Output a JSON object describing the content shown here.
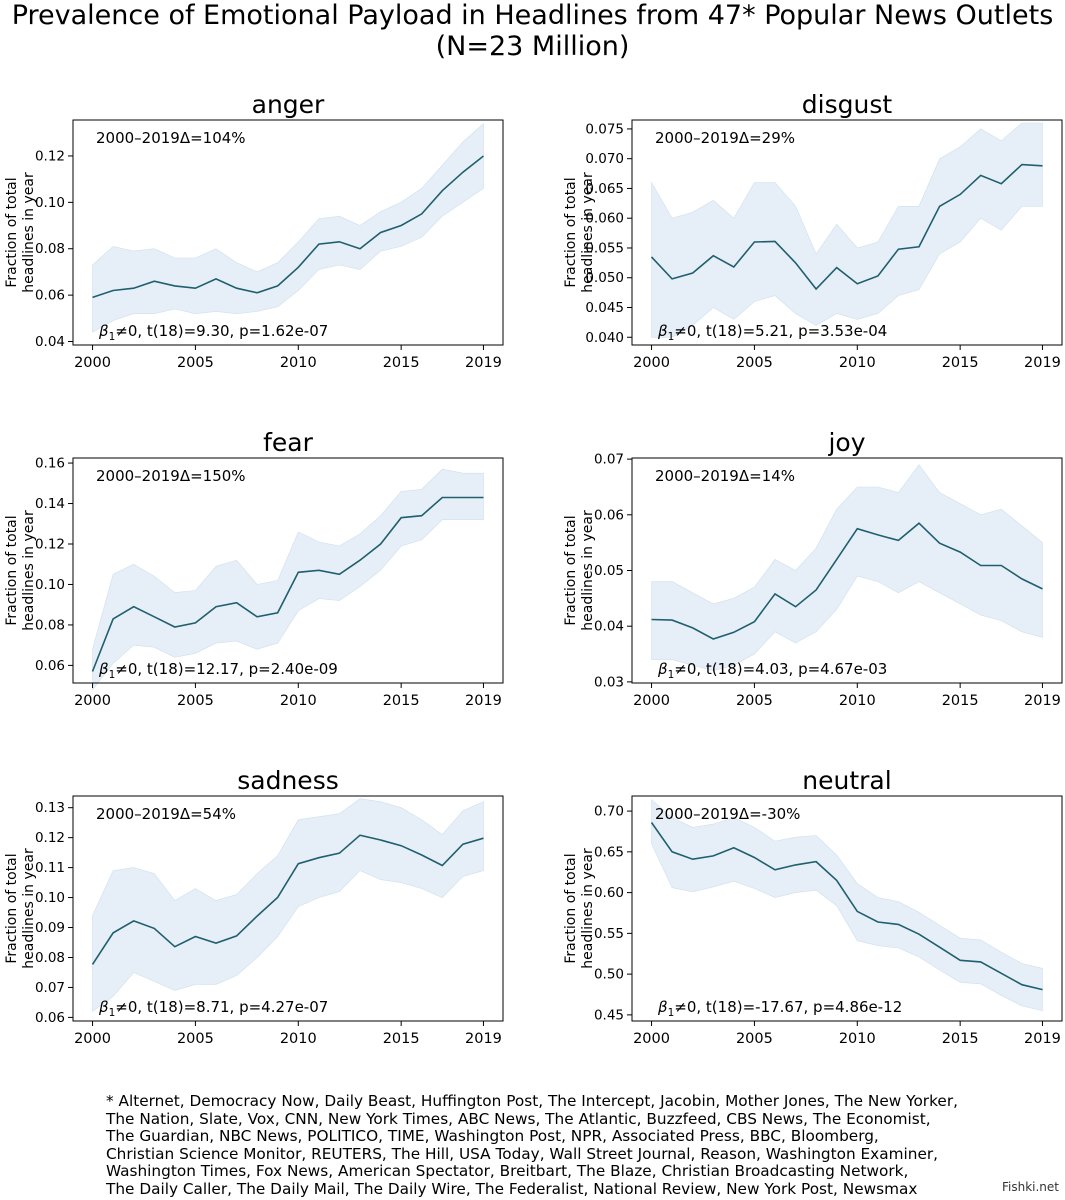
{
  "title": {
    "line1": "Prevalence of Emotional Payload in Headlines from 47* Popular News Outlets",
    "line2": "(N=23 Million)"
  },
  "shared": {
    "ylabel_line1": "Fraction of total",
    "ylabel_line2": "headlines in year",
    "x_ticks": [
      "2000",
      "2005",
      "2010",
      "2015",
      "2019"
    ],
    "x_tick_values": [
      2000,
      2005,
      2010,
      2015,
      2019
    ],
    "colors": {
      "line": "#1f5f6e",
      "band": "#e6eff7",
      "band_edge": "#cfdfee"
    }
  },
  "chart_data": [
    {
      "type": "line",
      "title": "anger",
      "delta": "2000–2019Δ=104%",
      "stat": "≠0, t(18)=9.30, p=1.62e-07",
      "x": [
        2000,
        2001,
        2002,
        2003,
        2004,
        2005,
        2006,
        2007,
        2008,
        2009,
        2010,
        2011,
        2012,
        2013,
        2014,
        2015,
        2016,
        2017,
        2018,
        2019
      ],
      "values": [
        0.059,
        0.062,
        0.063,
        0.066,
        0.064,
        0.063,
        0.067,
        0.063,
        0.061,
        0.064,
        0.072,
        0.082,
        0.083,
        0.08,
        0.087,
        0.09,
        0.095,
        0.105,
        0.113,
        0.12
      ],
      "lower": [
        0.044,
        0.049,
        0.052,
        0.052,
        0.054,
        0.052,
        0.053,
        0.052,
        0.053,
        0.055,
        0.062,
        0.071,
        0.073,
        0.071,
        0.079,
        0.081,
        0.085,
        0.094,
        0.1,
        0.106
      ],
      "upper": [
        0.073,
        0.081,
        0.079,
        0.08,
        0.076,
        0.076,
        0.08,
        0.074,
        0.07,
        0.074,
        0.083,
        0.093,
        0.094,
        0.09,
        0.096,
        0.1,
        0.106,
        0.116,
        0.126,
        0.134
      ],
      "ylim": [
        0.0385,
        0.1355
      ],
      "y_ticks": [
        0.04,
        0.06,
        0.08,
        0.1,
        0.12
      ],
      "y_tick_labels": [
        "0.04",
        "0.06",
        "0.08",
        "0.10",
        "0.12"
      ]
    },
    {
      "type": "line",
      "title": "disgust",
      "delta": "2000–2019Δ=29%",
      "stat": "≠0, t(18)=5.21, p=3.53e-04",
      "x": [
        2000,
        2001,
        2002,
        2003,
        2004,
        2005,
        2006,
        2007,
        2008,
        2009,
        2010,
        2011,
        2012,
        2013,
        2014,
        2015,
        2016,
        2017,
        2018,
        2019
      ],
      "values": [
        0.0535,
        0.0498,
        0.0508,
        0.0537,
        0.0518,
        0.056,
        0.0561,
        0.0525,
        0.0481,
        0.0517,
        0.049,
        0.0503,
        0.0548,
        0.0552,
        0.062,
        0.064,
        0.0672,
        0.0658,
        0.069,
        0.0688
      ],
      "lower": [
        0.04,
        0.04,
        0.042,
        0.045,
        0.043,
        0.046,
        0.047,
        0.044,
        0.042,
        0.044,
        0.043,
        0.044,
        0.047,
        0.048,
        0.054,
        0.056,
        0.06,
        0.058,
        0.062,
        0.062
      ],
      "upper": [
        0.066,
        0.06,
        0.061,
        0.063,
        0.06,
        0.066,
        0.066,
        0.062,
        0.054,
        0.059,
        0.055,
        0.056,
        0.062,
        0.062,
        0.07,
        0.072,
        0.075,
        0.073,
        0.076,
        0.076
      ],
      "ylim": [
        0.0387,
        0.0765
      ],
      "y_ticks": [
        0.04,
        0.045,
        0.05,
        0.055,
        0.06,
        0.065,
        0.07,
        0.075
      ],
      "y_tick_labels": [
        "0.040",
        "0.045",
        "0.050",
        "0.055",
        "0.060",
        "0.065",
        "0.070",
        "0.075"
      ]
    },
    {
      "type": "line",
      "title": "fear",
      "delta": "2000–2019Δ=150%",
      "stat": "≠0, t(18)=12.17, p=2.40e-09",
      "x": [
        2000,
        2001,
        2002,
        2003,
        2004,
        2005,
        2006,
        2007,
        2008,
        2009,
        2010,
        2011,
        2012,
        2013,
        2014,
        2015,
        2016,
        2017,
        2018,
        2019
      ],
      "values": [
        0.057,
        0.083,
        0.089,
        0.084,
        0.079,
        0.081,
        0.089,
        0.091,
        0.084,
        0.086,
        0.106,
        0.107,
        0.105,
        0.112,
        0.12,
        0.133,
        0.134,
        0.143,
        0.143,
        0.143
      ],
      "lower": [
        0.048,
        0.061,
        0.07,
        0.069,
        0.064,
        0.066,
        0.071,
        0.072,
        0.068,
        0.071,
        0.087,
        0.093,
        0.092,
        0.099,
        0.107,
        0.119,
        0.122,
        0.132,
        0.132,
        0.132
      ],
      "upper": [
        0.068,
        0.105,
        0.11,
        0.104,
        0.096,
        0.097,
        0.109,
        0.112,
        0.1,
        0.102,
        0.126,
        0.121,
        0.119,
        0.125,
        0.134,
        0.146,
        0.147,
        0.157,
        0.155,
        0.155
      ],
      "ylim": [
        0.0513,
        0.1625
      ],
      "y_ticks": [
        0.06,
        0.08,
        0.1,
        0.12,
        0.14,
        0.16
      ],
      "y_tick_labels": [
        "0.06",
        "0.08",
        "0.10",
        "0.12",
        "0.14",
        "0.16"
      ]
    },
    {
      "type": "line",
      "title": "joy",
      "delta": "2000–2019Δ=14%",
      "stat": "≠0, t(18)=4.03, p=4.67e-03",
      "x": [
        2000,
        2001,
        2002,
        2003,
        2004,
        2005,
        2006,
        2007,
        2008,
        2009,
        2010,
        2011,
        2012,
        2013,
        2014,
        2015,
        2016,
        2017,
        2018,
        2019
      ],
      "values": [
        0.0412,
        0.0411,
        0.0397,
        0.0377,
        0.0389,
        0.0408,
        0.0458,
        0.0435,
        0.0465,
        0.052,
        0.0575,
        0.0564,
        0.0554,
        0.0585,
        0.0549,
        0.0533,
        0.0509,
        0.0509,
        0.0485,
        0.0467
      ],
      "lower": [
        0.034,
        0.034,
        0.033,
        0.032,
        0.033,
        0.035,
        0.039,
        0.037,
        0.039,
        0.043,
        0.049,
        0.048,
        0.046,
        0.048,
        0.046,
        0.044,
        0.042,
        0.041,
        0.039,
        0.038
      ],
      "upper": [
        0.048,
        0.048,
        0.046,
        0.044,
        0.045,
        0.047,
        0.052,
        0.05,
        0.054,
        0.061,
        0.065,
        0.065,
        0.064,
        0.069,
        0.064,
        0.062,
        0.06,
        0.061,
        0.058,
        0.055
      ],
      "ylim": [
        0.0298,
        0.0702
      ],
      "y_ticks": [
        0.03,
        0.04,
        0.05,
        0.06,
        0.07
      ],
      "y_tick_labels": [
        "0.03",
        "0.04",
        "0.05",
        "0.06",
        "0.07"
      ]
    },
    {
      "type": "line",
      "title": "sadness",
      "delta": "2000–2019Δ=54%",
      "stat": "≠0, t(18)=8.71, p=4.27e-07",
      "x": [
        2000,
        2001,
        2002,
        2003,
        2004,
        2005,
        2006,
        2007,
        2008,
        2009,
        2010,
        2011,
        2012,
        2013,
        2014,
        2015,
        2016,
        2017,
        2018,
        2019
      ],
      "values": [
        0.0777,
        0.0882,
        0.0922,
        0.0897,
        0.0836,
        0.087,
        0.0848,
        0.0872,
        0.0938,
        0.1001,
        0.1113,
        0.1133,
        0.1148,
        0.1208,
        0.1192,
        0.1173,
        0.1142,
        0.1107,
        0.1178,
        0.1198
      ],
      "lower": [
        0.062,
        0.067,
        0.075,
        0.072,
        0.069,
        0.071,
        0.071,
        0.074,
        0.08,
        0.087,
        0.097,
        0.1,
        0.102,
        0.109,
        0.106,
        0.105,
        0.103,
        0.1,
        0.107,
        0.109
      ],
      "upper": [
        0.094,
        0.109,
        0.11,
        0.108,
        0.099,
        0.103,
        0.099,
        0.101,
        0.108,
        0.114,
        0.126,
        0.127,
        0.128,
        0.133,
        0.132,
        0.13,
        0.126,
        0.121,
        0.129,
        0.132
      ],
      "ylim": [
        0.0588,
        0.1339
      ],
      "y_ticks": [
        0.06,
        0.07,
        0.08,
        0.09,
        0.1,
        0.11,
        0.12,
        0.13
      ],
      "y_tick_labels": [
        "0.06",
        "0.07",
        "0.08",
        "0.09",
        "0.10",
        "0.11",
        "0.12",
        "0.13"
      ]
    },
    {
      "type": "line",
      "title": "neutral",
      "delta": "2000–2019Δ=-30%",
      "stat": "≠0, t(18)=-17.67, p=4.86e-12",
      "x": [
        2000,
        2001,
        2002,
        2003,
        2004,
        2005,
        2006,
        2007,
        2008,
        2009,
        2010,
        2011,
        2012,
        2013,
        2014,
        2015,
        2016,
        2017,
        2018,
        2019
      ],
      "values": [
        0.686,
        0.65,
        0.641,
        0.645,
        0.655,
        0.643,
        0.628,
        0.634,
        0.638,
        0.615,
        0.577,
        0.564,
        0.561,
        0.549,
        0.533,
        0.517,
        0.515,
        0.501,
        0.487,
        0.481
      ],
      "lower": [
        0.66,
        0.606,
        0.601,
        0.607,
        0.614,
        0.605,
        0.594,
        0.6,
        0.603,
        0.584,
        0.541,
        0.535,
        0.532,
        0.521,
        0.505,
        0.49,
        0.488,
        0.474,
        0.461,
        0.455
      ],
      "upper": [
        0.714,
        0.692,
        0.68,
        0.684,
        0.692,
        0.68,
        0.663,
        0.668,
        0.67,
        0.646,
        0.611,
        0.594,
        0.589,
        0.576,
        0.56,
        0.544,
        0.542,
        0.527,
        0.513,
        0.507
      ],
      "ylim": [
        0.4425,
        0.7185
      ],
      "y_ticks": [
        0.45,
        0.5,
        0.55,
        0.6,
        0.65,
        0.7
      ],
      "y_tick_labels": [
        "0.45",
        "0.50",
        "0.55",
        "0.60",
        "0.65",
        "0.70"
      ]
    }
  ],
  "footnote": [
    "* Alternet, Democracy Now, Daily Beast, Huffington Post, The Intercept, Jacobin, Mother Jones, The New Yorker,",
    "The Nation, Slate, Vox, CNN, New York Times, ABC News, The Atlantic, Buzzfeed, CBS News, The Economist,",
    "The Guardian, NBC News, POLITICO, TIME, Washington Post, NPR, Associated Press, BBC, Bloomberg,",
    "Christian Science Monitor, REUTERS, The Hill, USA Today, Wall Street Journal, Reason, Washington Examiner,",
    "Washington Times, Fox News, American Spectator, Breitbart, The Blaze, Christian Broadcasting Network,",
    "The Daily Caller, The Daily Mail, The Daily Wire, The Federalist, National Review, New York Post, Newsmax"
  ],
  "watermark": "Fishki.net"
}
